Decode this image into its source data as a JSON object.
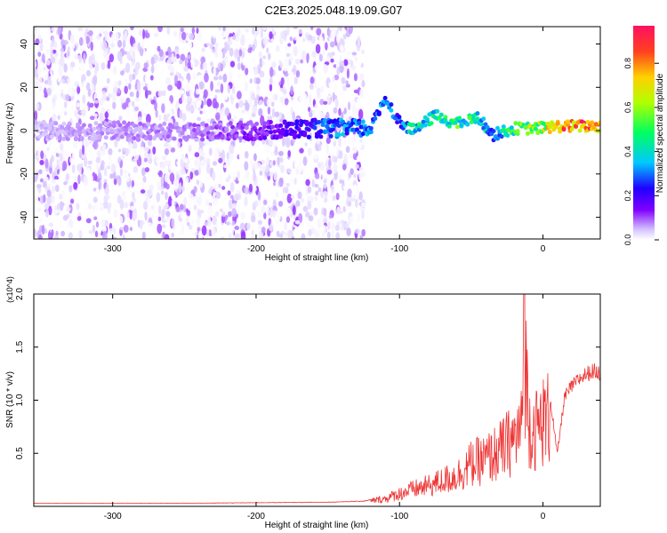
{
  "title": "C2E3.2025.048.19.09.G07",
  "chart_data": [
    {
      "type": "heatmap",
      "xlabel": "Height of straight line (km)",
      "ylabel": "Frequency (Hz)",
      "xlim": [
        -355,
        40
      ],
      "ylim": [
        -50,
        48
      ],
      "xticks": [
        -300,
        -200,
        -100,
        0
      ],
      "yticks": [
        40,
        20,
        0,
        -20,
        -40
      ],
      "colorbar": {
        "label": "Normalized spectral amplitude",
        "range": [
          0,
          0.97
        ],
        "ticks": [
          0.0,
          0.2,
          0.4,
          0.6,
          0.8
        ],
        "tick_labels": [
          "0.0",
          "0.2",
          "0.4",
          "0.6",
          "0.8"
        ],
        "colors": [
          "#ffffff",
          "#d3c0ff",
          "#8000ff",
          "#2000ff",
          "#00c8ff",
          "#00ff60",
          "#b0ff00",
          "#ffd000",
          "#ff4020",
          "#ff1060"
        ]
      },
      "ridge": [
        {
          "x": -350,
          "freq": 0,
          "amp": 0.12
        },
        {
          "x": -300,
          "freq": 0,
          "amp": 0.15
        },
        {
          "x": -250,
          "freq": -1,
          "amp": 0.16
        },
        {
          "x": -200,
          "freq": 0,
          "amp": 0.22
        },
        {
          "x": -160,
          "freq": 1,
          "amp": 0.35
        },
        {
          "x": -140,
          "freq": 1,
          "amp": 0.45
        },
        {
          "x": -120,
          "freq": 1,
          "amp": 0.42
        },
        {
          "x": -110,
          "freq": 15,
          "amp": 0.45
        },
        {
          "x": -100,
          "freq": 4,
          "amp": 0.4
        },
        {
          "x": -90,
          "freq": 0,
          "amp": 0.55
        },
        {
          "x": -75,
          "freq": 7,
          "amp": 0.55
        },
        {
          "x": -60,
          "freq": 3,
          "amp": 0.6
        },
        {
          "x": -45,
          "freq": 6,
          "amp": 0.55
        },
        {
          "x": -35,
          "freq": -2,
          "amp": 0.45
        },
        {
          "x": -20,
          "freq": 1,
          "amp": 0.6
        },
        {
          "x": -5,
          "freq": 1,
          "amp": 0.7
        },
        {
          "x": 10,
          "freq": 2,
          "amp": 0.85
        },
        {
          "x": 25,
          "freq": 2,
          "amp": 0.95
        },
        {
          "x": 40,
          "freq": 2,
          "amp": 0.9
        }
      ]
    },
    {
      "type": "line",
      "xlabel": "Height of straight line (km)",
      "ylabel": "SNR (10 * v/v)",
      "y_multiplier": "(x10^4)",
      "xlim": [
        -355,
        40
      ],
      "ylim": [
        0,
        2.0
      ],
      "xticks": [
        -300,
        -200,
        -100,
        0
      ],
      "yticks": [
        0.5,
        1.0,
        1.5,
        2.0
      ],
      "ytick_labels": [
        "0.5",
        "1.0",
        "1.5",
        "2.0"
      ],
      "series": [
        {
          "color": "#ee3333",
          "x": [
            -355,
            -300,
            -250,
            -200,
            -150,
            -125,
            -110,
            -100,
            -90,
            -80,
            -70,
            -60,
            -50,
            -40,
            -30,
            -20,
            -15,
            -13,
            -10,
            -5,
            0,
            5,
            10,
            15,
            20,
            25,
            30,
            35,
            40
          ],
          "y": [
            0.03,
            0.03,
            0.03,
            0.035,
            0.04,
            0.05,
            0.09,
            0.15,
            0.2,
            0.24,
            0.3,
            0.36,
            0.5,
            0.55,
            0.65,
            0.8,
            0.9,
            2.0,
            1.0,
            0.9,
            1.0,
            1.05,
            0.5,
            1.05,
            1.15,
            1.22,
            1.27,
            1.3,
            1.28
          ]
        }
      ]
    }
  ]
}
